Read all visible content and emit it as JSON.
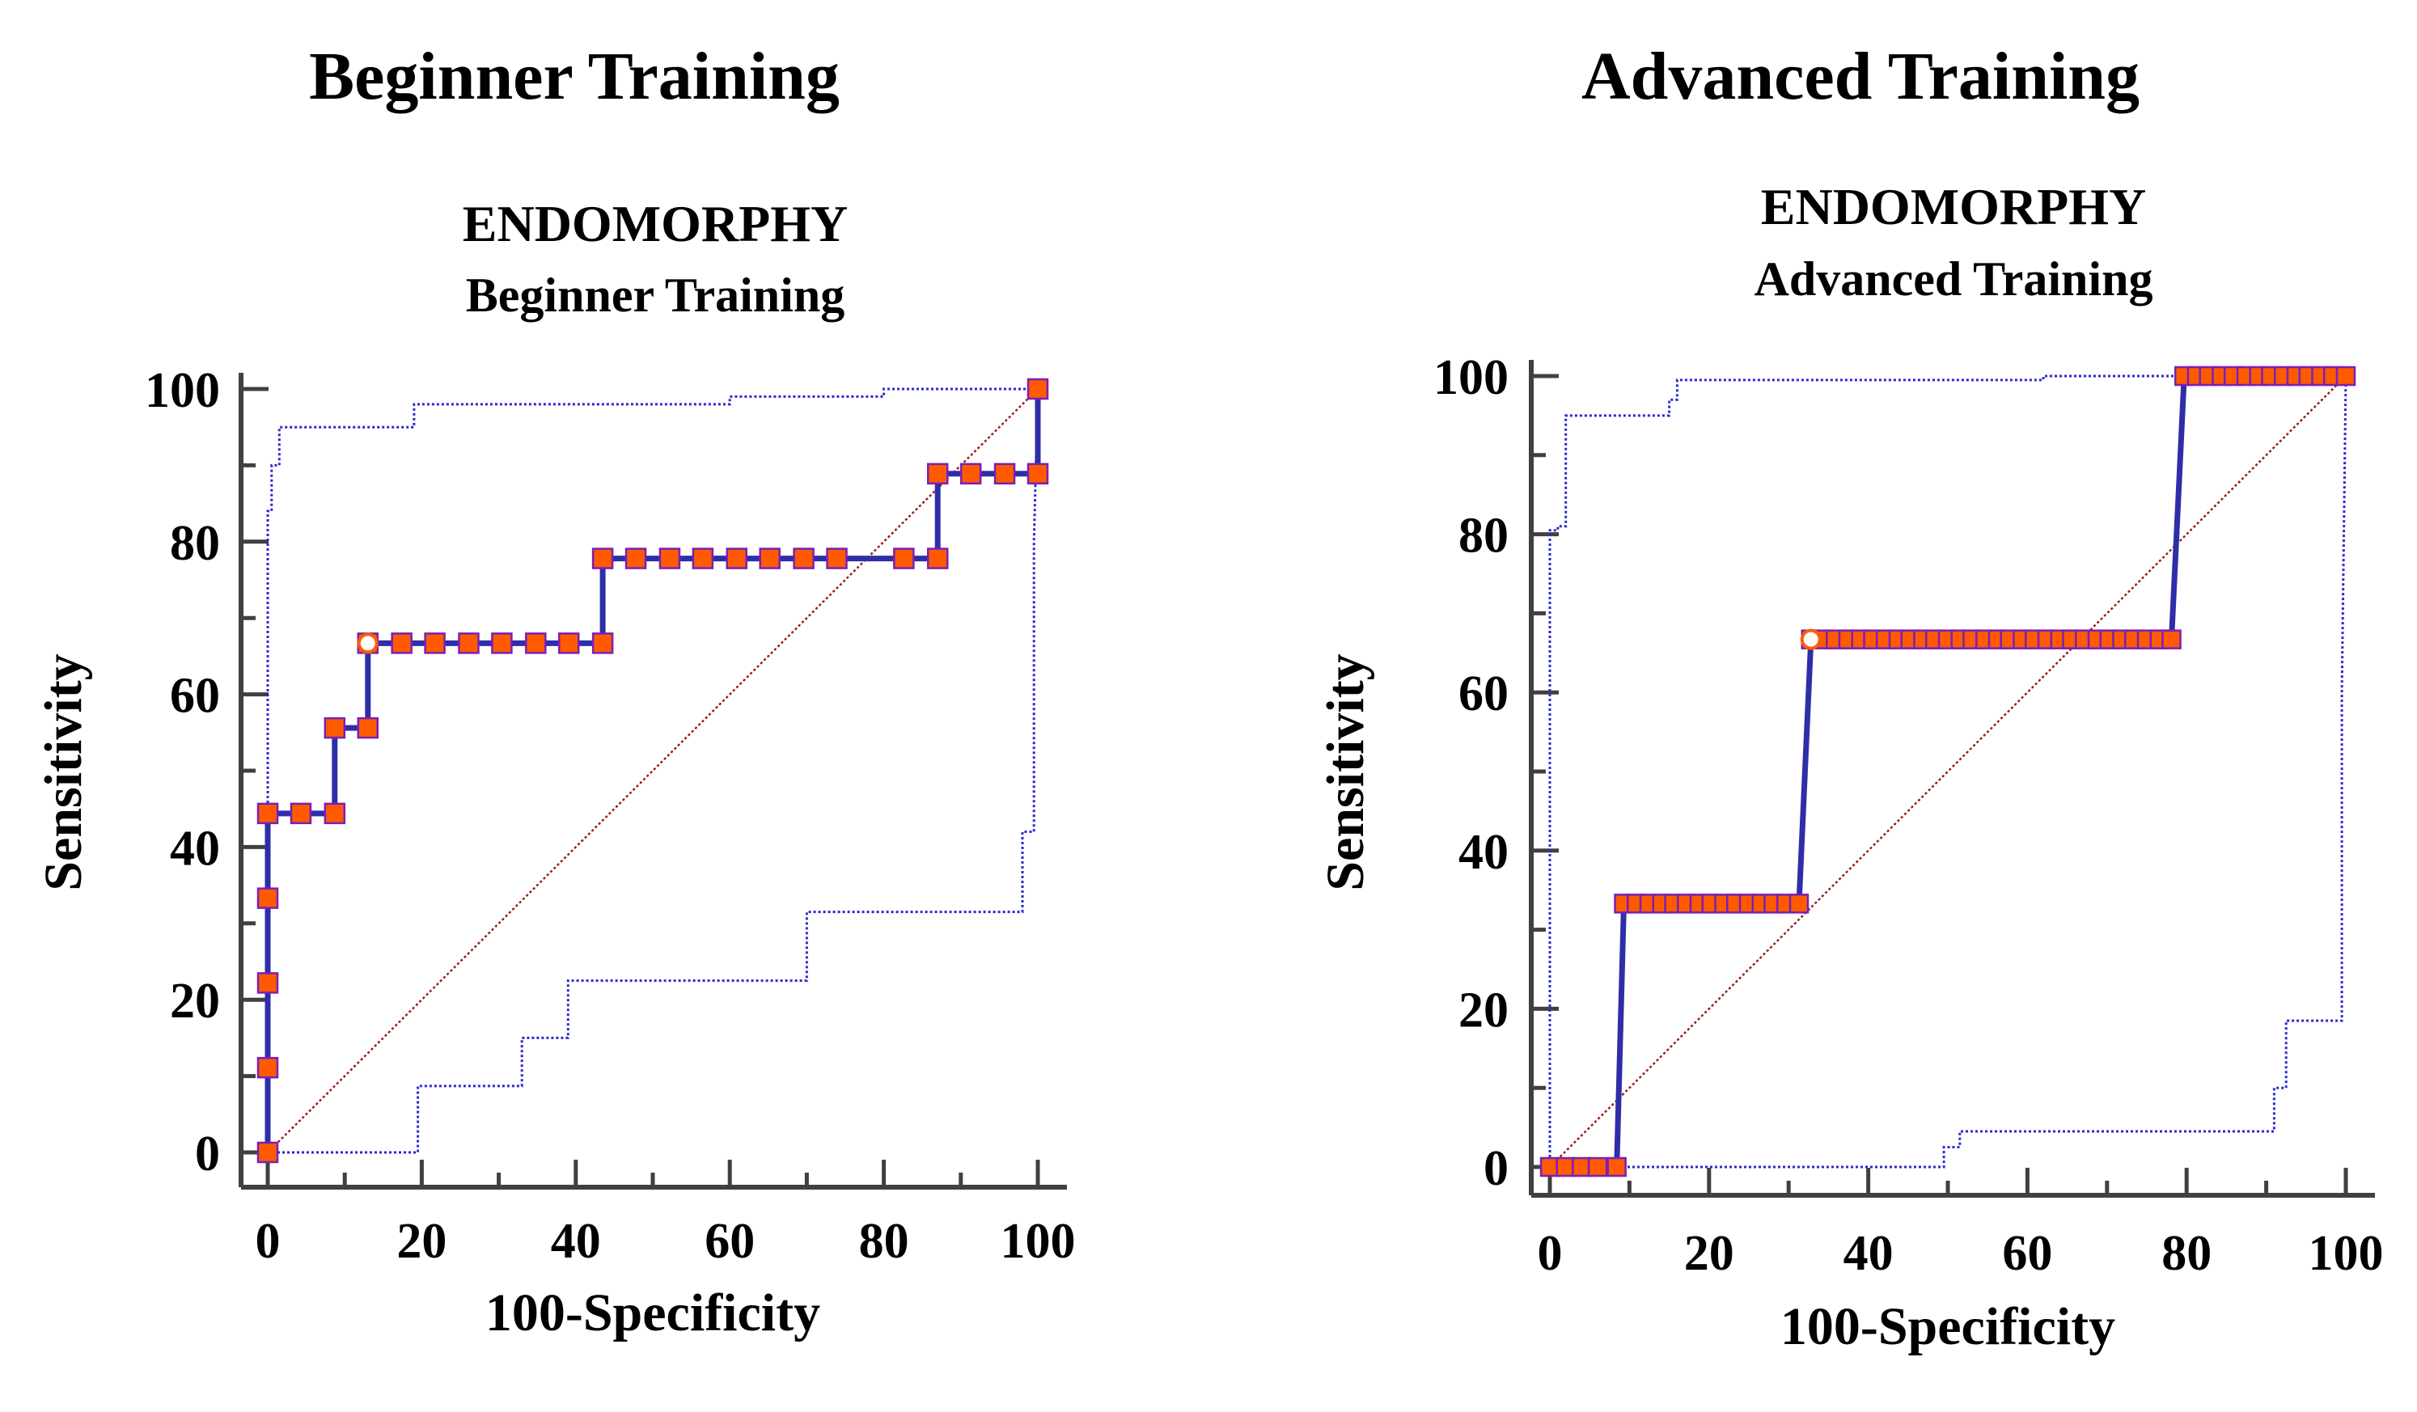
{
  "panels": [
    {
      "heading": "Beginner Training"
    },
    {
      "heading": "Advanced Training"
    }
  ],
  "colors": {
    "roc_line": "#2e2ea8",
    "marker_fill": "#ff5a00",
    "marker_stroke": "#7a1fb8",
    "ci_line": "#2a2ad0",
    "diagonal": "#9b1b1b",
    "optimal_point_fill": "#ffffff",
    "optimal_point_stroke": "#ff5a00",
    "axis": "#404040"
  },
  "chart_data": [
    {
      "type": "line",
      "title": "ENDOMORPHY",
      "subtitle": "Beginner Training",
      "xlabel": "100-Specificity",
      "ylabel": "Sensitivity",
      "xlim": [
        0,
        100
      ],
      "ylim": [
        0,
        100
      ],
      "xticks": [
        0,
        20,
        40,
        60,
        80,
        100
      ],
      "yticks": [
        0,
        20,
        40,
        60,
        80,
        100
      ],
      "reference_line": [
        [
          0,
          0
        ],
        [
          100,
          100
        ]
      ],
      "optimal_point": {
        "x": 13,
        "y": 66.7
      },
      "series": [
        {
          "name": "ROC curve",
          "x": [
            0,
            0,
            0,
            0,
            0,
            4.3,
            8.7,
            8.7,
            13,
            13,
            17.4,
            21.7,
            26.1,
            30.4,
            34.8,
            39.1,
            43.5,
            43.5,
            47.8,
            52.2,
            56.5,
            60.9,
            65.2,
            69.6,
            73.9,
            82.6,
            87,
            87,
            91.3,
            95.7,
            100,
            100
          ],
          "y": [
            0,
            11.1,
            22.2,
            33.3,
            44.4,
            44.4,
            44.4,
            55.6,
            55.6,
            66.7,
            66.7,
            66.7,
            66.7,
            66.7,
            66.7,
            66.7,
            66.7,
            77.8,
            77.8,
            77.8,
            77.8,
            77.8,
            77.8,
            77.8,
            77.8,
            77.8,
            77.8,
            88.9,
            88.9,
            88.9,
            88.9,
            100
          ]
        },
        {
          "name": "Upper 95% CI",
          "x": [
            0,
            0,
            0.5,
            0.5,
            1.5,
            1.5,
            19,
            19,
            60,
            60,
            80,
            80,
            100
          ],
          "y": [
            0,
            84,
            84,
            90,
            90,
            95,
            95,
            98,
            98,
            99,
            99,
            100,
            100
          ]
        },
        {
          "name": "Lower 95% CI",
          "x": [
            0,
            19.5,
            19.5,
            33,
            33,
            39,
            39,
            70,
            70,
            98,
            98,
            99.5,
            99.5,
            100
          ],
          "y": [
            0,
            0,
            8.7,
            8.7,
            15,
            15,
            22.5,
            22.5,
            31.5,
            31.5,
            42,
            42,
            80,
            100
          ]
        }
      ]
    },
    {
      "type": "line",
      "title": "ENDOMORPHY",
      "subtitle": "Advanced Training",
      "xlabel": "100-Specificity",
      "ylabel": "Sensitivity",
      "xlim": [
        0,
        100
      ],
      "ylim": [
        0,
        100
      ],
      "xticks": [
        0,
        20,
        40,
        60,
        80,
        100
      ],
      "yticks": [
        0,
        20,
        40,
        60,
        80,
        100
      ],
      "reference_line": [
        [
          0,
          0
        ],
        [
          100,
          100
        ]
      ],
      "optimal_point": {
        "x": 32.8,
        "y": 66.7
      },
      "series": [
        {
          "name": "ROC curve",
          "x": [
            0,
            2,
            4,
            6,
            8.4,
            9.3,
            10.9,
            12.5,
            14.1,
            15.6,
            17.2,
            18.8,
            20.3,
            21.9,
            23.4,
            25,
            26.6,
            28.1,
            29.7,
            31.3,
            32.8,
            34.4,
            35.9,
            37.5,
            39.1,
            40.6,
            42.2,
            43.8,
            45.3,
            46.9,
            48.4,
            50,
            51.6,
            53.1,
            54.7,
            56.3,
            57.8,
            59.4,
            60.9,
            62.5,
            64.1,
            65.6,
            67.2,
            68.8,
            70.3,
            71.9,
            73.4,
            75,
            76.6,
            78.1,
            79.7,
            81.3,
            82.8,
            84.4,
            85.9,
            87.5,
            89.1,
            90.6,
            92.2,
            93.8,
            95.3,
            96.9,
            98.4,
            100
          ],
          "y": [
            0,
            0,
            0,
            0,
            0,
            33.3,
            33.3,
            33.3,
            33.3,
            33.3,
            33.3,
            33.3,
            33.3,
            33.3,
            33.3,
            33.3,
            33.3,
            33.3,
            33.3,
            33.3,
            66.7,
            66.7,
            66.7,
            66.7,
            66.7,
            66.7,
            66.7,
            66.7,
            66.7,
            66.7,
            66.7,
            66.7,
            66.7,
            66.7,
            66.7,
            66.7,
            66.7,
            66.7,
            66.7,
            66.7,
            66.7,
            66.7,
            66.7,
            66.7,
            66.7,
            66.7,
            66.7,
            66.7,
            66.7,
            66.7,
            100,
            100,
            100,
            100,
            100,
            100,
            100,
            100,
            100,
            100,
            100,
            100,
            100,
            100
          ]
        },
        {
          "name": "Upper 95% CI",
          "x": [
            0,
            0,
            1,
            1,
            2,
            2,
            15,
            15,
            16,
            16,
            62,
            62,
            100
          ],
          "y": [
            0,
            80.5,
            80.5,
            81,
            81,
            95,
            95,
            97,
            97,
            99.5,
            99.5,
            100,
            100
          ]
        },
        {
          "name": "Lower 95% CI",
          "x": [
            0,
            49.5,
            49.5,
            51.5,
            51.5,
            91,
            91,
            92.5,
            92.5,
            99.5,
            99.5,
            100
          ],
          "y": [
            0,
            0,
            2.5,
            2.5,
            4.5,
            4.5,
            10,
            10,
            18.5,
            18.5,
            60,
            100
          ]
        }
      ]
    }
  ]
}
